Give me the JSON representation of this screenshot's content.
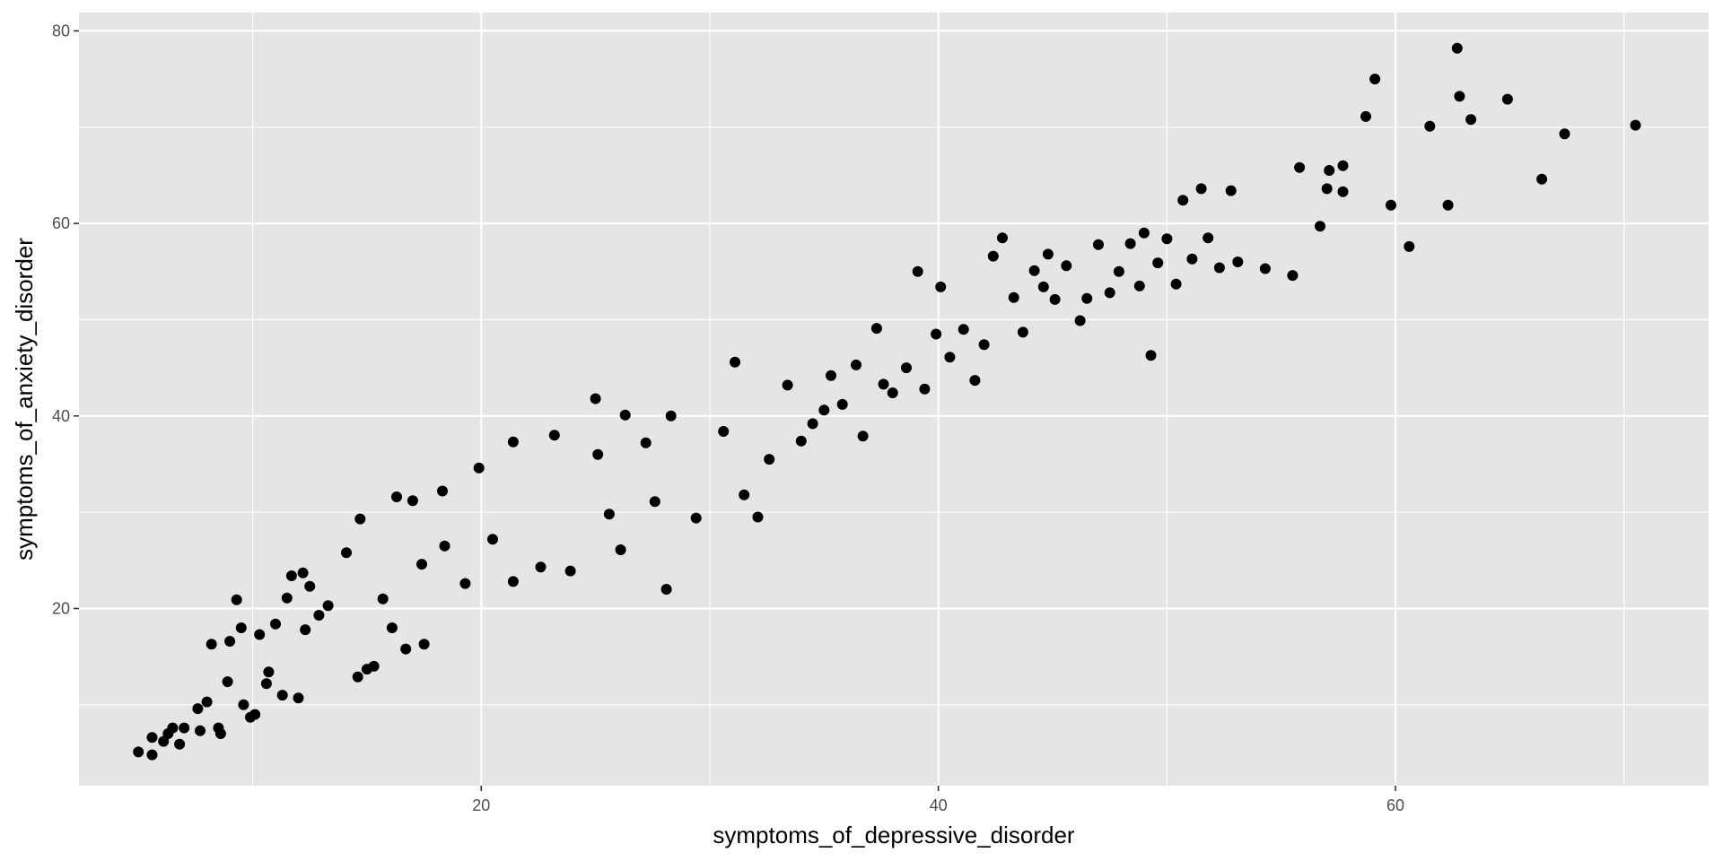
{
  "chart_data": {
    "type": "scatter",
    "title": "",
    "xlabel": "symptoms_of_depressive_disorder",
    "ylabel": "symptoms_of_anxiety_disorder",
    "xlim": [
      2.4,
      73.7
    ],
    "ylim": [
      1.6,
      81.9
    ],
    "x_ticks": [
      20,
      40,
      60
    ],
    "x_tick_labels": [
      "20",
      "40",
      "60"
    ],
    "x_minor": [
      10,
      30,
      50,
      70
    ],
    "y_ticks": [
      20,
      40,
      60,
      80
    ],
    "y_tick_labels": [
      "20",
      "40",
      "60",
      "80"
    ],
    "y_minor": [
      10,
      30,
      50,
      70
    ],
    "grid": true,
    "colors": {
      "panel": "#e5e5e5",
      "grid": "#ffffff",
      "point": "#000000",
      "tick": "#333333"
    },
    "series": [
      {
        "points": [
          [
            5.0,
            5.1
          ],
          [
            5.6,
            4.8
          ],
          [
            5.6,
            6.6
          ],
          [
            6.1,
            6.2
          ],
          [
            6.3,
            7.0
          ],
          [
            6.5,
            7.6
          ],
          [
            6.8,
            5.9
          ],
          [
            7.0,
            7.6
          ],
          [
            7.6,
            9.6
          ],
          [
            7.7,
            7.3
          ],
          [
            8.0,
            10.3
          ],
          [
            8.2,
            16.3
          ],
          [
            8.5,
            7.6
          ],
          [
            8.6,
            7.0
          ],
          [
            8.9,
            12.4
          ],
          [
            9.0,
            16.6
          ],
          [
            9.3,
            20.9
          ],
          [
            9.5,
            18.0
          ],
          [
            9.6,
            10.0
          ],
          [
            9.9,
            8.7
          ],
          [
            10.1,
            9.0
          ],
          [
            10.3,
            17.3
          ],
          [
            10.6,
            12.2
          ],
          [
            10.7,
            13.4
          ],
          [
            11.0,
            18.4
          ],
          [
            11.3,
            11.0
          ],
          [
            11.5,
            21.1
          ],
          [
            11.7,
            23.4
          ],
          [
            12.0,
            10.7
          ],
          [
            12.2,
            23.7
          ],
          [
            12.3,
            17.8
          ],
          [
            12.5,
            22.3
          ],
          [
            12.9,
            19.3
          ],
          [
            13.3,
            20.3
          ],
          [
            14.1,
            25.8
          ],
          [
            14.6,
            12.9
          ],
          [
            14.7,
            29.3
          ],
          [
            15.0,
            13.7
          ],
          [
            15.3,
            14.0
          ],
          [
            15.7,
            21.0
          ],
          [
            16.1,
            18.0
          ],
          [
            16.3,
            31.6
          ],
          [
            16.7,
            15.8
          ],
          [
            17.0,
            31.2
          ],
          [
            17.4,
            24.6
          ],
          [
            17.5,
            16.3
          ],
          [
            18.3,
            32.2
          ],
          [
            18.4,
            26.5
          ],
          [
            19.3,
            22.6
          ],
          [
            19.9,
            34.6
          ],
          [
            20.5,
            27.2
          ],
          [
            21.4,
            37.3
          ],
          [
            21.4,
            22.8
          ],
          [
            22.6,
            24.3
          ],
          [
            23.2,
            38.0
          ],
          [
            23.9,
            23.9
          ],
          [
            25.0,
            41.8
          ],
          [
            25.1,
            36.0
          ],
          [
            25.6,
            29.8
          ],
          [
            26.1,
            26.1
          ],
          [
            26.3,
            40.1
          ],
          [
            27.2,
            37.2
          ],
          [
            27.6,
            31.1
          ],
          [
            28.1,
            22.0
          ],
          [
            28.3,
            40.0
          ],
          [
            29.4,
            29.4
          ],
          [
            30.6,
            38.4
          ],
          [
            31.1,
            45.6
          ],
          [
            31.5,
            31.8
          ],
          [
            32.1,
            29.5
          ],
          [
            32.6,
            35.5
          ],
          [
            33.4,
            43.2
          ],
          [
            34.0,
            37.4
          ],
          [
            34.5,
            39.2
          ],
          [
            35.0,
            40.6
          ],
          [
            35.3,
            44.2
          ],
          [
            35.8,
            41.2
          ],
          [
            36.4,
            45.3
          ],
          [
            36.7,
            37.9
          ],
          [
            37.3,
            49.1
          ],
          [
            37.6,
            43.3
          ],
          [
            38.0,
            42.4
          ],
          [
            38.6,
            45.0
          ],
          [
            39.1,
            55.0
          ],
          [
            39.4,
            42.8
          ],
          [
            39.9,
            48.5
          ],
          [
            40.1,
            53.4
          ],
          [
            40.5,
            46.1
          ],
          [
            41.1,
            49.0
          ],
          [
            41.6,
            43.7
          ],
          [
            42.0,
            47.4
          ],
          [
            42.4,
            56.6
          ],
          [
            42.8,
            58.5
          ],
          [
            43.3,
            52.3
          ],
          [
            43.7,
            48.7
          ],
          [
            44.2,
            55.1
          ],
          [
            44.6,
            53.4
          ],
          [
            44.8,
            56.8
          ],
          [
            45.1,
            52.1
          ],
          [
            45.6,
            55.6
          ],
          [
            46.2,
            49.9
          ],
          [
            46.5,
            52.2
          ],
          [
            47.0,
            57.8
          ],
          [
            47.5,
            52.8
          ],
          [
            47.9,
            55.0
          ],
          [
            48.4,
            57.9
          ],
          [
            48.8,
            53.5
          ],
          [
            49.0,
            59.0
          ],
          [
            49.3,
            46.3
          ],
          [
            49.6,
            55.9
          ],
          [
            50.0,
            58.4
          ],
          [
            50.4,
            53.7
          ],
          [
            50.7,
            62.4
          ],
          [
            51.1,
            56.3
          ],
          [
            51.5,
            63.6
          ],
          [
            51.8,
            58.5
          ],
          [
            52.3,
            55.4
          ],
          [
            52.8,
            63.4
          ],
          [
            53.1,
            56.0
          ],
          [
            54.3,
            55.3
          ],
          [
            55.5,
            54.6
          ],
          [
            55.8,
            65.8
          ],
          [
            56.7,
            59.7
          ],
          [
            57.0,
            63.6
          ],
          [
            57.1,
            65.5
          ],
          [
            57.7,
            66.0
          ],
          [
            57.7,
            63.3
          ],
          [
            58.7,
            71.1
          ],
          [
            59.1,
            75.0
          ],
          [
            59.8,
            61.9
          ],
          [
            60.6,
            57.6
          ],
          [
            61.5,
            70.1
          ],
          [
            62.3,
            61.9
          ],
          [
            62.7,
            78.2
          ],
          [
            62.8,
            73.2
          ],
          [
            63.3,
            70.8
          ],
          [
            64.9,
            72.9
          ],
          [
            66.4,
            64.6
          ],
          [
            67.4,
            69.3
          ],
          [
            70.5,
            70.2
          ]
        ]
      }
    ]
  }
}
